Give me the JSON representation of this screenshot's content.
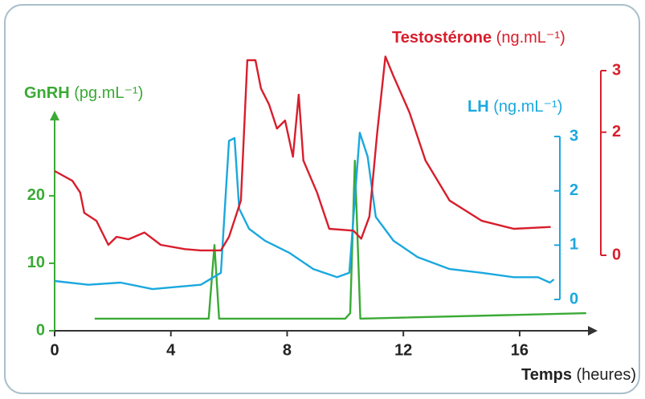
{
  "chart_data": {
    "type": "line",
    "xlabel": {
      "name": "Temps",
      "unit": "(heures)"
    },
    "xlim": [
      0,
      18.6
    ],
    "xticks": [
      0,
      4,
      8,
      12,
      16
    ],
    "ylim": [
      0,
      32
    ],
    "yticks": [
      0,
      10,
      20
    ],
    "y2lim": [
      0,
      3
    ],
    "y2ticks": [
      0,
      1,
      2,
      3
    ],
    "y3lim": [
      0,
      3
    ],
    "y3ticks": [
      0,
      2,
      3
    ],
    "series": [
      {
        "name": "GnRH",
        "unit": "(pg.mL⁻¹)",
        "color": "#3aaa35",
        "axis": "y",
        "x": [
          1.38,
          5.3,
          5.5,
          5.66,
          10.0,
          10.17,
          10.33,
          10.52,
          18.29
        ],
        "values": [
          1.8,
          1.8,
          12.7,
          1.8,
          1.8,
          2.6,
          25.2,
          1.8,
          2.6
        ]
      },
      {
        "name": "LH",
        "unit": "(ng.mL⁻¹)",
        "color": "#1ba8de",
        "axis": "y2",
        "x": [
          0,
          1.16,
          2.27,
          3.37,
          5.03,
          5.72,
          6.0,
          6.19,
          6.35,
          6.69,
          7.24,
          8.07,
          8.9,
          9.72,
          10.14,
          10.5,
          10.77,
          11.05,
          11.66,
          12.49,
          13.59,
          14.7,
          15.8,
          16.63,
          17.04,
          17.18
        ],
        "values": [
          0.34,
          0.27,
          0.31,
          0.19,
          0.27,
          0.49,
          2.92,
          2.97,
          1.67,
          1.3,
          1.08,
          0.86,
          0.56,
          0.41,
          0.49,
          3.07,
          2.63,
          1.52,
          1.08,
          0.78,
          0.56,
          0.49,
          0.41,
          0.41,
          0.31,
          0.37
        ]
      },
      {
        "name": "Testostérone",
        "unit": "(ng.mL⁻¹)",
        "color": "#d81e2c",
        "axis": "y3",
        "x": [
          0,
          0.61,
          0.88,
          1.02,
          1.44,
          1.85,
          2.13,
          2.54,
          3.09,
          3.65,
          4.48,
          5.03,
          5.72,
          6.0,
          6.41,
          6.63,
          6.91,
          7.1,
          7.38,
          7.65,
          7.93,
          8.2,
          8.4,
          8.56,
          9.03,
          9.45,
          10.28,
          10.55,
          10.83,
          11.1,
          11.38,
          11.66,
          12.21,
          12.76,
          13.59,
          14.7,
          15.8,
          17.07
        ],
        "values": [
          1.37,
          1.21,
          1.02,
          0.69,
          0.56,
          0.17,
          0.3,
          0.26,
          0.37,
          0.17,
          0.1,
          0.08,
          0.08,
          0.3,
          0.89,
          3.17,
          3.17,
          2.71,
          2.45,
          2.06,
          2.19,
          1.6,
          2.61,
          1.54,
          1.02,
          0.43,
          0.4,
          0.27,
          0.63,
          1.99,
          3.23,
          2.91,
          2.32,
          1.54,
          0.89,
          0.56,
          0.43,
          0.46
        ]
      }
    ]
  }
}
